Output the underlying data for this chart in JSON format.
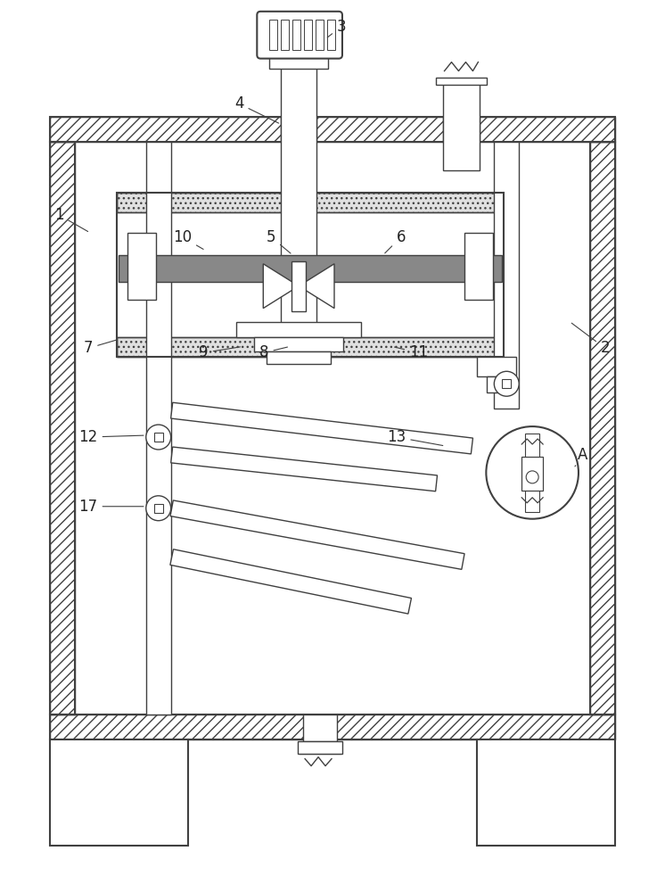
{
  "bg_color": "#ffffff",
  "lc": "#404040",
  "lw": 1.0,
  "lw2": 1.5,
  "fig_width": 7.46,
  "fig_height": 10.0,
  "dpi": 100
}
